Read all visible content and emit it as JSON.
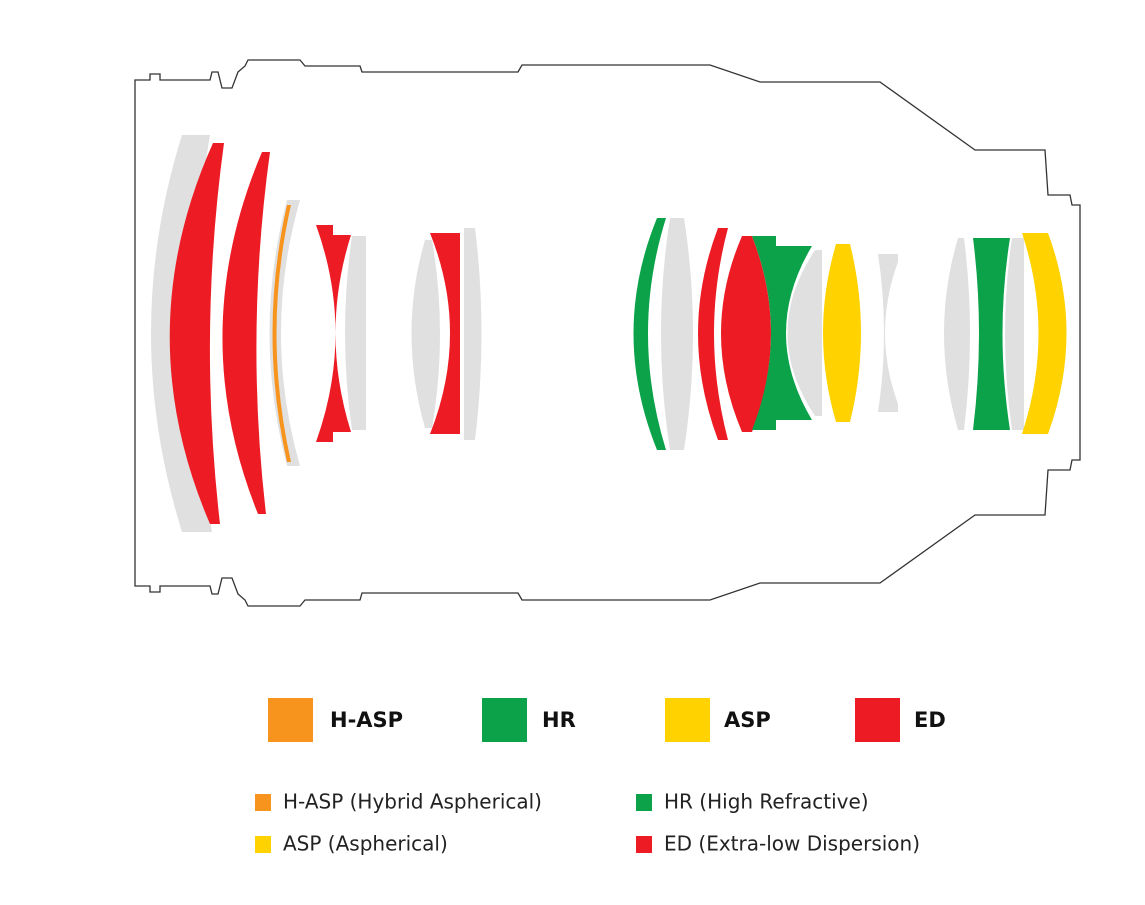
{
  "legend": [
    "H-ASP",
    "HR",
    "ASP",
    "ED"
  ],
  "key": [
    "H-ASP (Hybrid Aspherical)",
    "HR (High Refractive)",
    "ASP (Aspherical)",
    "ED (Extra-low Dispersion)"
  ]
}
